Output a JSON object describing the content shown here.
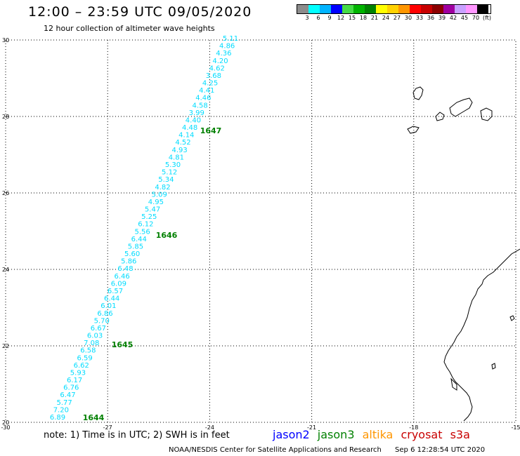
{
  "header": {
    "title": "12:00 – 23:59 UTC 09/05/2020",
    "subtitle": "12 hour collection of altimeter wave heights"
  },
  "color_scale": {
    "labels": [
      "3",
      "6",
      "9",
      "12",
      "15",
      "18",
      "21",
      "24",
      "27",
      "30",
      "33",
      "36",
      "39",
      "42",
      "45",
      "70"
    ],
    "unit": "(ft)",
    "colors": [
      "#8c8c8c",
      "#00ffff",
      "#00b4ff",
      "#0000ff",
      "#46dc46",
      "#00b400",
      "#008200",
      "#ffff00",
      "#ffd200",
      "#ff9600",
      "#ff0000",
      "#c80000",
      "#8c0000",
      "#a000a0",
      "#c8a0ff",
      "#ff96ff",
      "#000000"
    ]
  },
  "map": {
    "lon_labels": [
      "-30",
      "-27",
      "-24",
      "-21",
      "-18",
      "-15"
    ],
    "lat_labels": [
      "30",
      "28",
      "26",
      "24",
      "22",
      "20"
    ],
    "track_color": "#00dcff",
    "pass_label_color": "#008000",
    "swh_values": [
      "5.11",
      "4.86",
      "4.36",
      "4.20",
      "4.62",
      "3.68",
      "4.25",
      "4.41",
      "4.46",
      "4.58",
      "3.99",
      "4.40",
      "4.48",
      "4.14",
      "4.52",
      "4.93",
      "4.81",
      "5.30",
      "5.12",
      "5.34",
      "4.82",
      "5.09",
      "4.95",
      "5.47",
      "5.25",
      "6.12",
      "5.56",
      "6.44",
      "5.85",
      "5.60",
      "5.86",
      "6.48",
      "6.46",
      "6.09",
      "6.57",
      "6.44",
      "6.01",
      "6.86",
      "5.70",
      "6.67",
      "6.03",
      "7.08",
      "6.58",
      "6.59",
      "6.62",
      "5.93",
      "6.17",
      "6.76",
      "6.47",
      "5.77",
      "7.20",
      "6.89"
    ],
    "pass_labels": [
      "1647",
      "1646",
      "1645",
      "1644"
    ]
  },
  "notes": {
    "note": "note:  1) Time is in UTC;  2) SWH is in feet"
  },
  "satellites": {
    "jason2": "jason2",
    "jason3": "jason3",
    "altika": "altika",
    "cryosat": "cryosat",
    "s3a": "s3a",
    "colors": {
      "jason2": "#0000ff",
      "jason3": "#008000",
      "altika": "#ff9600",
      "cryosat": "#c80000",
      "s3a": "#c80000"
    }
  },
  "footer": {
    "credit": "NOAA/NESDIS Center for Satellite Applications and Research",
    "timestamp": "Sep  6 12:28:54 UTC 2020"
  }
}
